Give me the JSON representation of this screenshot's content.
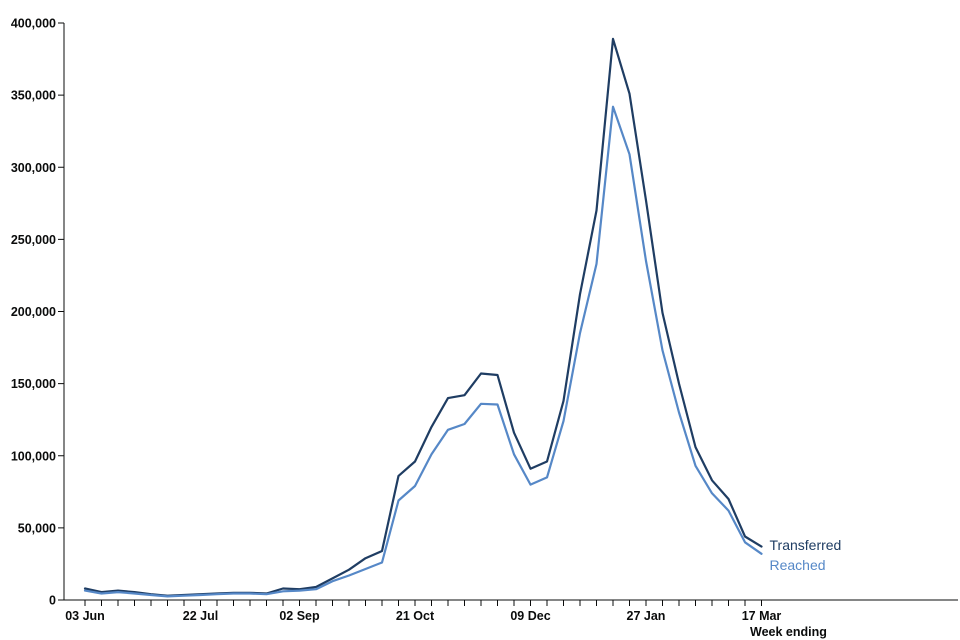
{
  "chart_data": {
    "type": "line",
    "xlabel": "Week ending",
    "ylabel": "",
    "ylim": [
      0,
      400000
    ],
    "yticks": [
      0,
      50000,
      100000,
      150000,
      200000,
      250000,
      300000,
      350000,
      400000
    ],
    "ytick_labels": [
      "0",
      "50,000",
      "100,000",
      "150,000",
      "200,000",
      "250,000",
      "300,000",
      "350,000",
      "400,000"
    ],
    "x_tick_labels": [
      {
        "week": 0,
        "label": "03 Jun"
      },
      {
        "week": 7,
        "label": "22 Jul"
      },
      {
        "week": 13,
        "label": "02 Sep"
      },
      {
        "week": 20,
        "label": "21 Oct"
      },
      {
        "week": 27,
        "label": "09 Dec"
      },
      {
        "week": 34,
        "label": "27 Jan"
      },
      {
        "week": 41,
        "label": "17 Mar"
      }
    ],
    "x": [
      "03 Jun",
      "10 Jun",
      "17 Jun",
      "24 Jun",
      "01 Jul",
      "08 Jul",
      "15 Jul",
      "22 Jul",
      "29 Jul",
      "05 Aug",
      "12 Aug",
      "19 Aug",
      "26 Aug",
      "02 Sep",
      "09 Sep",
      "16 Sep",
      "23 Sep",
      "30 Sep",
      "07 Oct",
      "14 Oct",
      "21 Oct",
      "28 Oct",
      "04 Nov",
      "11 Nov",
      "18 Nov",
      "25 Nov",
      "02 Dec",
      "09 Dec",
      "16 Dec",
      "23 Dec",
      "30 Dec",
      "06 Jan",
      "13 Jan",
      "20 Jan",
      "27 Jan",
      "03 Feb",
      "10 Feb",
      "17 Feb",
      "24 Feb",
      "03 Mar",
      "10 Mar",
      "17 Mar"
    ],
    "series": [
      {
        "name": "Transferred",
        "color": "#1f3d63",
        "values": [
          8000,
          5500,
          6500,
          5500,
          4000,
          3000,
          3500,
          4000,
          4500,
          5000,
          5000,
          4500,
          8000,
          7500,
          9000,
          15000,
          21000,
          29000,
          34000,
          86000,
          96000,
          120000,
          140000,
          142000,
          157000,
          156000,
          116000,
          91000,
          96000,
          138000,
          212000,
          270000,
          389000,
          351000,
          277000,
          199000,
          150000,
          106000,
          83000,
          70000,
          44000,
          37000
        ]
      },
      {
        "name": "Reached",
        "color": "#5688c7",
        "values": [
          6500,
          4500,
          5500,
          4500,
          3500,
          2500,
          3000,
          3500,
          4000,
          4500,
          4500,
          4000,
          6000,
          6500,
          7500,
          13000,
          17000,
          21500,
          26000,
          69000,
          79000,
          101000,
          118000,
          122000,
          136000,
          135500,
          101000,
          80000,
          85000,
          124000,
          185000,
          233000,
          342000,
          309000,
          235000,
          173000,
          130000,
          93000,
          74000,
          62000,
          40000,
          32000
        ]
      }
    ],
    "grid": false,
    "legend": "direct labels at line ends"
  },
  "labels": {
    "transferred": "Transferred",
    "reached": "Reached"
  }
}
